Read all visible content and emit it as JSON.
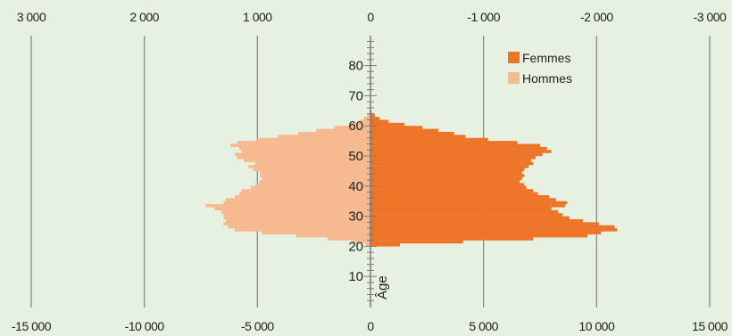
{
  "colors": {
    "background": "#e6f1e2",
    "femmes": "#ee7428",
    "hommes": "#f7b98f",
    "grid": "#8a8a8a",
    "axis": "#7a7a7a"
  },
  "chart_data": {
    "type": "bar",
    "orientation": "horizontal-population-pyramid",
    "ylabel": "Âge",
    "bottom_axis": {
      "ticks": [
        -15000,
        -10000,
        -5000,
        0,
        5000,
        10000,
        15000
      ],
      "tick_labels": [
        "-15 000",
        "-10 000",
        "-5 000",
        "0",
        "5 000",
        "10 000",
        "15 000"
      ],
      "xlim": [
        -15000,
        15000
      ]
    },
    "top_axis": {
      "ticks": [
        3000,
        2000,
        1000,
        0,
        -1000,
        -2000,
        -3000
      ],
      "tick_labels": [
        "3 000",
        "2 000",
        "1 000",
        "0",
        "-1 000",
        "-2 000",
        "-3 000"
      ]
    },
    "age_axis": {
      "ticks": [
        10,
        20,
        30,
        40,
        50,
        60,
        70,
        80
      ],
      "tick_labels": [
        "10",
        "20",
        "30",
        "40",
        "50",
        "60",
        "70",
        "80"
      ],
      "ylim": [
        0,
        90
      ]
    },
    "legend": [
      "Femmes",
      "Hommes"
    ],
    "legend_position": "top-right",
    "ages": [
      20,
      21,
      22,
      23,
      24,
      25,
      26,
      27,
      28,
      29,
      30,
      31,
      32,
      33,
      34,
      35,
      36,
      37,
      38,
      39,
      40,
      41,
      42,
      43,
      44,
      45,
      46,
      47,
      48,
      49,
      50,
      51,
      52,
      53,
      54,
      55,
      56,
      57,
      58,
      59,
      60,
      61,
      62,
      63,
      64
    ],
    "series": [
      {
        "name": "Hommes",
        "values": [
          -200,
          -800,
          -1900,
          -3300,
          -4800,
          -6000,
          -6300,
          -6500,
          -6400,
          -6500,
          -6500,
          -6600,
          -6900,
          -7300,
          -6500,
          -6400,
          -6000,
          -5800,
          -5700,
          -5300,
          -5100,
          -4900,
          -4800,
          -4900,
          -4900,
          -5200,
          -5400,
          -5100,
          -5600,
          -5900,
          -6000,
          -5700,
          -5800,
          -6200,
          -5900,
          -5000,
          -4100,
          -3200,
          -2400,
          -1600,
          -900,
          -500,
          -300,
          -150,
          -50
        ]
      },
      {
        "name": "Femmes",
        "values": [
          1300,
          4100,
          7200,
          9600,
          10200,
          10900,
          10800,
          10100,
          9400,
          8800,
          8500,
          8300,
          8000,
          8600,
          8700,
          8200,
          7900,
          7400,
          7200,
          6900,
          6800,
          6600,
          6700,
          6800,
          6700,
          6800,
          7000,
          7200,
          7100,
          7300,
          7600,
          8000,
          7800,
          7500,
          6500,
          5200,
          4200,
          3700,
          3000,
          2300,
          1500,
          800,
          400,
          200,
          50
        ]
      }
    ]
  }
}
